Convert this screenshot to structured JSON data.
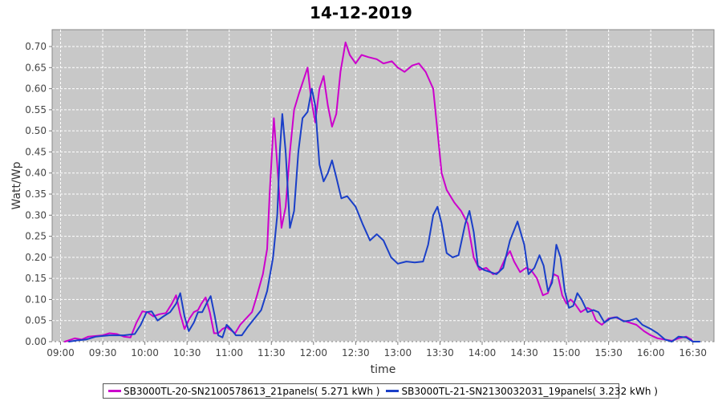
{
  "chart_data": {
    "type": "line",
    "title": "14-12-2019",
    "xlabel": "time",
    "ylabel": "Watt/Wp",
    "xlim_hours": [
      8.9,
      16.75
    ],
    "ylim": [
      0,
      0.74
    ],
    "yticks": [
      0.0,
      0.05,
      0.1,
      0.15,
      0.2,
      0.25,
      0.3,
      0.35,
      0.4,
      0.45,
      0.5,
      0.55,
      0.6,
      0.65,
      0.7
    ],
    "xticks": [
      {
        "t": 9.0,
        "label": "09:00"
      },
      {
        "t": 9.5,
        "label": "09:30"
      },
      {
        "t": 10.0,
        "label": "10:00"
      },
      {
        "t": 10.5,
        "label": "10:30"
      },
      {
        "t": 11.0,
        "label": "11:00"
      },
      {
        "t": 11.5,
        "label": "11:30"
      },
      {
        "t": 12.0,
        "label": "12:00"
      },
      {
        "t": 12.5,
        "label": "12:30"
      },
      {
        "t": 13.0,
        "label": "13:00"
      },
      {
        "t": 13.5,
        "label": "13:30"
      },
      {
        "t": 14.0,
        "label": "14:00"
      },
      {
        "t": 14.5,
        "label": "14:30"
      },
      {
        "t": 15.0,
        "label": "15:00"
      },
      {
        "t": 15.5,
        "label": "15:30"
      },
      {
        "t": 16.0,
        "label": "16:00"
      },
      {
        "t": 16.5,
        "label": "16:30"
      }
    ],
    "grid": true,
    "legend_position": "bottom",
    "plot_background": "#c8c8c8",
    "series": [
      {
        "name": "SB3000TL-20-SN2100578613_21panels( 5.271 kWh )",
        "color": "#cc00cc",
        "points": [
          [
            9.05,
            0.0
          ],
          [
            9.17,
            0.008
          ],
          [
            9.25,
            0.005
          ],
          [
            9.33,
            0.012
          ],
          [
            9.5,
            0.015
          ],
          [
            9.58,
            0.02
          ],
          [
            9.67,
            0.018
          ],
          [
            9.75,
            0.012
          ],
          [
            9.83,
            0.01
          ],
          [
            9.9,
            0.045
          ],
          [
            9.97,
            0.072
          ],
          [
            10.03,
            0.07
          ],
          [
            10.1,
            0.06
          ],
          [
            10.17,
            0.065
          ],
          [
            10.25,
            0.068
          ],
          [
            10.32,
            0.09
          ],
          [
            10.37,
            0.11
          ],
          [
            10.42,
            0.065
          ],
          [
            10.47,
            0.03
          ],
          [
            10.53,
            0.055
          ],
          [
            10.58,
            0.07
          ],
          [
            10.63,
            0.075
          ],
          [
            10.67,
            0.09
          ],
          [
            10.72,
            0.105
          ],
          [
            10.77,
            0.07
          ],
          [
            10.82,
            0.02
          ],
          [
            10.87,
            0.02
          ],
          [
            10.92,
            0.03
          ],
          [
            10.97,
            0.035
          ],
          [
            11.0,
            0.03
          ],
          [
            11.07,
            0.02
          ],
          [
            11.13,
            0.04
          ],
          [
            11.2,
            0.055
          ],
          [
            11.27,
            0.07
          ],
          [
            11.33,
            0.11
          ],
          [
            11.4,
            0.16
          ],
          [
            11.45,
            0.22
          ],
          [
            11.48,
            0.35
          ],
          [
            11.53,
            0.53
          ],
          [
            11.57,
            0.42
          ],
          [
            11.62,
            0.27
          ],
          [
            11.67,
            0.32
          ],
          [
            11.72,
            0.45
          ],
          [
            11.77,
            0.55
          ],
          [
            11.83,
            0.59
          ],
          [
            11.88,
            0.62
          ],
          [
            11.93,
            0.65
          ],
          [
            11.97,
            0.58
          ],
          [
            12.02,
            0.52
          ],
          [
            12.07,
            0.6
          ],
          [
            12.12,
            0.63
          ],
          [
            12.17,
            0.56
          ],
          [
            12.22,
            0.51
          ],
          [
            12.27,
            0.54
          ],
          [
            12.32,
            0.64
          ],
          [
            12.38,
            0.71
          ],
          [
            12.43,
            0.68
          ],
          [
            12.5,
            0.66
          ],
          [
            12.57,
            0.68
          ],
          [
            12.65,
            0.675
          ],
          [
            12.75,
            0.67
          ],
          [
            12.83,
            0.66
          ],
          [
            12.93,
            0.665
          ],
          [
            13.0,
            0.65
          ],
          [
            13.08,
            0.64
          ],
          [
            13.17,
            0.655
          ],
          [
            13.25,
            0.66
          ],
          [
            13.33,
            0.64
          ],
          [
            13.42,
            0.6
          ],
          [
            13.47,
            0.5
          ],
          [
            13.52,
            0.4
          ],
          [
            13.58,
            0.36
          ],
          [
            13.67,
            0.33
          ],
          [
            13.75,
            0.31
          ],
          [
            13.83,
            0.28
          ],
          [
            13.9,
            0.2
          ],
          [
            13.97,
            0.17
          ],
          [
            14.05,
            0.175
          ],
          [
            14.13,
            0.16
          ],
          [
            14.2,
            0.165
          ],
          [
            14.28,
            0.2
          ],
          [
            14.33,
            0.215
          ],
          [
            14.38,
            0.19
          ],
          [
            14.45,
            0.165
          ],
          [
            14.52,
            0.175
          ],
          [
            14.58,
            0.17
          ],
          [
            14.65,
            0.15
          ],
          [
            14.72,
            0.11
          ],
          [
            14.78,
            0.115
          ],
          [
            14.85,
            0.16
          ],
          [
            14.9,
            0.155
          ],
          [
            14.95,
            0.11
          ],
          [
            15.0,
            0.09
          ],
          [
            15.05,
            0.1
          ],
          [
            15.1,
            0.09
          ],
          [
            15.17,
            0.07
          ],
          [
            15.25,
            0.08
          ],
          [
            15.3,
            0.075
          ],
          [
            15.35,
            0.05
          ],
          [
            15.42,
            0.04
          ],
          [
            15.5,
            0.055
          ],
          [
            15.58,
            0.058
          ],
          [
            15.67,
            0.05
          ],
          [
            15.75,
            0.045
          ],
          [
            15.83,
            0.04
          ],
          [
            15.92,
            0.025
          ],
          [
            16.0,
            0.015
          ],
          [
            16.08,
            0.008
          ],
          [
            16.17,
            0.005
          ],
          [
            16.25,
            0.002
          ],
          [
            16.33,
            0.008
          ],
          [
            16.42,
            0.012
          ],
          [
            16.48,
            0.005
          ],
          [
            16.5,
            0.0
          ]
        ]
      },
      {
        "name": "SB3000TL-21-SN2130032031_19panels( 3.232 kWh )",
        "color": "#1a3fc8",
        "points": [
          [
            9.1,
            0.0
          ],
          [
            9.2,
            0.003
          ],
          [
            9.3,
            0.005
          ],
          [
            9.42,
            0.012
          ],
          [
            9.58,
            0.015
          ],
          [
            9.75,
            0.015
          ],
          [
            9.88,
            0.018
          ],
          [
            9.95,
            0.04
          ],
          [
            10.02,
            0.07
          ],
          [
            10.08,
            0.072
          ],
          [
            10.15,
            0.05
          ],
          [
            10.22,
            0.06
          ],
          [
            10.3,
            0.07
          ],
          [
            10.37,
            0.09
          ],
          [
            10.42,
            0.115
          ],
          [
            10.47,
            0.06
          ],
          [
            10.52,
            0.025
          ],
          [
            10.58,
            0.045
          ],
          [
            10.63,
            0.07
          ],
          [
            10.68,
            0.07
          ],
          [
            10.73,
            0.09
          ],
          [
            10.78,
            0.108
          ],
          [
            10.83,
            0.06
          ],
          [
            10.87,
            0.015
          ],
          [
            10.92,
            0.01
          ],
          [
            10.97,
            0.04
          ],
          [
            11.02,
            0.03
          ],
          [
            11.08,
            0.015
          ],
          [
            11.15,
            0.015
          ],
          [
            11.22,
            0.035
          ],
          [
            11.3,
            0.055
          ],
          [
            11.38,
            0.075
          ],
          [
            11.45,
            0.12
          ],
          [
            11.52,
            0.2
          ],
          [
            11.57,
            0.3
          ],
          [
            11.6,
            0.45
          ],
          [
            11.63,
            0.54
          ],
          [
            11.67,
            0.45
          ],
          [
            11.72,
            0.27
          ],
          [
            11.77,
            0.31
          ],
          [
            11.82,
            0.45
          ],
          [
            11.87,
            0.53
          ],
          [
            11.93,
            0.545
          ],
          [
            11.98,
            0.6
          ],
          [
            12.02,
            0.56
          ],
          [
            12.07,
            0.42
          ],
          [
            12.12,
            0.38
          ],
          [
            12.17,
            0.4
          ],
          [
            12.22,
            0.43
          ],
          [
            12.27,
            0.39
          ],
          [
            12.33,
            0.34
          ],
          [
            12.4,
            0.345
          ],
          [
            12.5,
            0.32
          ],
          [
            12.58,
            0.28
          ],
          [
            12.67,
            0.24
          ],
          [
            12.75,
            0.255
          ],
          [
            12.83,
            0.24
          ],
          [
            12.92,
            0.2
          ],
          [
            13.0,
            0.185
          ],
          [
            13.1,
            0.19
          ],
          [
            13.2,
            0.188
          ],
          [
            13.3,
            0.19
          ],
          [
            13.36,
            0.23
          ],
          [
            13.42,
            0.3
          ],
          [
            13.47,
            0.32
          ],
          [
            13.52,
            0.28
          ],
          [
            13.58,
            0.21
          ],
          [
            13.65,
            0.2
          ],
          [
            13.72,
            0.205
          ],
          [
            13.8,
            0.28
          ],
          [
            13.85,
            0.31
          ],
          [
            13.9,
            0.26
          ],
          [
            13.95,
            0.18
          ],
          [
            14.02,
            0.17
          ],
          [
            14.1,
            0.165
          ],
          [
            14.17,
            0.16
          ],
          [
            14.25,
            0.175
          ],
          [
            14.33,
            0.24
          ],
          [
            14.42,
            0.285
          ],
          [
            14.5,
            0.23
          ],
          [
            14.55,
            0.16
          ],
          [
            14.62,
            0.175
          ],
          [
            14.68,
            0.205
          ],
          [
            14.73,
            0.18
          ],
          [
            14.78,
            0.12
          ],
          [
            14.83,
            0.14
          ],
          [
            14.88,
            0.23
          ],
          [
            14.93,
            0.2
          ],
          [
            14.98,
            0.12
          ],
          [
            15.03,
            0.08
          ],
          [
            15.08,
            0.085
          ],
          [
            15.13,
            0.115
          ],
          [
            15.18,
            0.1
          ],
          [
            15.25,
            0.07
          ],
          [
            15.32,
            0.075
          ],
          [
            15.38,
            0.07
          ],
          [
            15.45,
            0.045
          ],
          [
            15.52,
            0.055
          ],
          [
            15.6,
            0.058
          ],
          [
            15.68,
            0.048
          ],
          [
            15.75,
            0.05
          ],
          [
            15.83,
            0.055
          ],
          [
            15.9,
            0.04
          ],
          [
            16.0,
            0.03
          ],
          [
            16.08,
            0.02
          ],
          [
            16.17,
            0.005
          ],
          [
            16.25,
            0.0
          ],
          [
            16.33,
            0.012
          ],
          [
            16.42,
            0.01
          ],
          [
            16.5,
            0.0
          ],
          [
            16.58,
            0.0
          ]
        ]
      }
    ]
  }
}
